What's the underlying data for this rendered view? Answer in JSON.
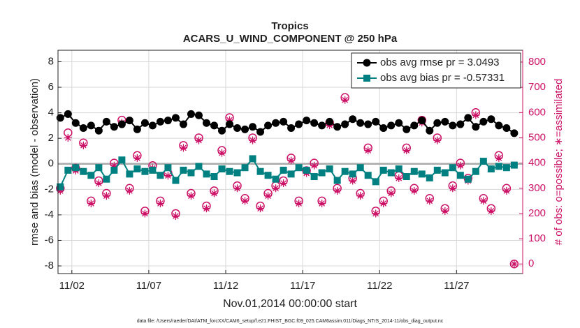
{
  "chart_data": {
    "type": "line",
    "title": "Tropics",
    "subtitle": "ACARS_U_WIND_COMPONENT @ 250 hPa",
    "xlabel": "Nov.01,2014 00:00:00 start",
    "ylabel": "rmse and bias (model - observation)",
    "y2label": "# of obs: o=possible; ∗=assimilated",
    "footnote": "data file: /Users/raeder/DAI/ATM_forcXX/CAM6_setup/f.e21.FHIST_BGC.f09_025.CAM6assim.011/Diags_NTrS_2014-11/obs_diag_output.nc",
    "x": [
      1.25,
      1.75,
      2.25,
      2.75,
      3.25,
      3.75,
      4.25,
      4.75,
      5.25,
      5.75,
      6.25,
      6.75,
      7.25,
      7.75,
      8.25,
      8.75,
      9.25,
      9.75,
      10.25,
      10.75,
      11.25,
      11.75,
      12.25,
      12.75,
      13.25,
      13.75,
      14.25,
      14.75,
      15.25,
      15.75,
      16.25,
      16.75,
      17.25,
      17.75,
      18.25,
      18.75,
      19.25,
      19.75,
      20.25,
      20.75,
      21.25,
      21.75,
      22.25,
      22.75,
      23.25,
      23.75,
      24.25,
      24.75,
      25.25,
      25.75,
      26.25,
      26.75,
      27.25,
      27.75,
      28.25,
      28.75,
      29.25,
      29.75,
      30.25,
      30.75
    ],
    "series": [
      {
        "name": "obs avg rmse pr = 3.0493",
        "color": "#000000",
        "marker": "dot",
        "line": true,
        "values": [
          3.6,
          3.9,
          3.2,
          2.8,
          3.0,
          2.6,
          3.3,
          2.9,
          3.1,
          3.4,
          2.7,
          3.2,
          3.0,
          3.3,
          3.4,
          3.6,
          3.1,
          3.9,
          3.8,
          3.2,
          3.0,
          2.6,
          3.1,
          2.8,
          2.7,
          2.9,
          2.5,
          3.0,
          3.2,
          3.3,
          2.8,
          3.1,
          3.4,
          3.2,
          3.0,
          3.3,
          2.9,
          3.1,
          3.5,
          3.2,
          3.1,
          3.3,
          2.8,
          3.0,
          3.2,
          2.7,
          3.0,
          3.4,
          2.6,
          3.2,
          3.3,
          3.0,
          3.1,
          3.6,
          2.9,
          3.3,
          3.5,
          3.0,
          2.8,
          2.4
        ]
      },
      {
        "name": "obs avg bias pr = -0.57331",
        "color": "#008080",
        "marker": "square",
        "line": true,
        "values": [
          -1.8,
          -0.5,
          -0.3,
          -0.6,
          -0.9,
          -0.3,
          -1.2,
          -0.5,
          0.3,
          -0.8,
          -0.4,
          -0.6,
          -0.5,
          -0.9,
          -0.3,
          -1.3,
          -0.5,
          -0.7,
          -0.2,
          -0.8,
          -1.0,
          -0.4,
          -0.6,
          -0.7,
          -0.3,
          0.4,
          -0.6,
          -0.9,
          -1.2,
          -0.5,
          -0.8,
          -0.3,
          -0.5,
          -1.0,
          -0.7,
          -0.4,
          -1.3,
          -0.6,
          -0.8,
          -0.3,
          -0.9,
          -1.4,
          -0.5,
          -0.7,
          -0.4,
          -1.0,
          -0.6,
          -0.8,
          -1.1,
          -0.5,
          -0.7,
          -0.3,
          -0.9,
          -1.2,
          -0.6,
          0.2,
          -0.4,
          -0.2,
          -0.3,
          -0.1
        ]
      },
      {
        "color": "#cc1166",
        "marker": "circle",
        "line": false,
        "axis": "y2",
        "values": [
          300,
          520,
          380,
          480,
          250,
          330,
          280,
          400,
          570,
          300,
          430,
          210,
          390,
          250,
          360,
          200,
          470,
          280,
          500,
          230,
          290,
          450,
          580,
          310,
          260,
          500,
          230,
          280,
          310,
          330,
          420,
          250,
          370,
          400,
          250,
          560,
          300,
          660,
          340,
          280,
          460,
          210,
          250,
          290,
          350,
          460,
          300,
          570,
          260,
          500,
          220,
          310,
          400,
          340,
          600,
          260,
          220,
          430,
          300,
          0
        ]
      },
      {
        "color": "#cc1166",
        "marker": "asterisk",
        "line": false,
        "axis": "y2",
        "values": [
          290,
          500,
          370,
          470,
          240,
          320,
          270,
          390,
          560,
          290,
          420,
          200,
          380,
          240,
          350,
          190,
          460,
          270,
          490,
          220,
          280,
          440,
          570,
          300,
          250,
          490,
          220,
          270,
          300,
          320,
          410,
          240,
          360,
          390,
          240,
          550,
          290,
          650,
          330,
          270,
          450,
          200,
          240,
          280,
          340,
          450,
          290,
          560,
          250,
          490,
          210,
          300,
          390,
          330,
          590,
          250,
          210,
          420,
          290,
          0
        ]
      }
    ],
    "xlim": [
      1.1,
      31.3
    ],
    "xticks": [
      {
        "value": 2,
        "label": "11/02"
      },
      {
        "value": 7,
        "label": "11/07"
      },
      {
        "value": 12,
        "label": "11/12"
      },
      {
        "value": 17,
        "label": "11/17"
      },
      {
        "value": 22,
        "label": "11/22"
      },
      {
        "value": 27,
        "label": "11/27"
      }
    ],
    "ylim": [
      -8.6,
      8.9
    ],
    "yticks": [
      -8,
      -6,
      -4,
      -2,
      0,
      2,
      4,
      6,
      8
    ],
    "y2lim": [
      -38,
      847
    ],
    "y2ticks": [
      0,
      100,
      200,
      300,
      400,
      500,
      600,
      700,
      800
    ],
    "y2color": "#cc1166",
    "grid": true,
    "zero_line": true,
    "legend": "upper right"
  }
}
